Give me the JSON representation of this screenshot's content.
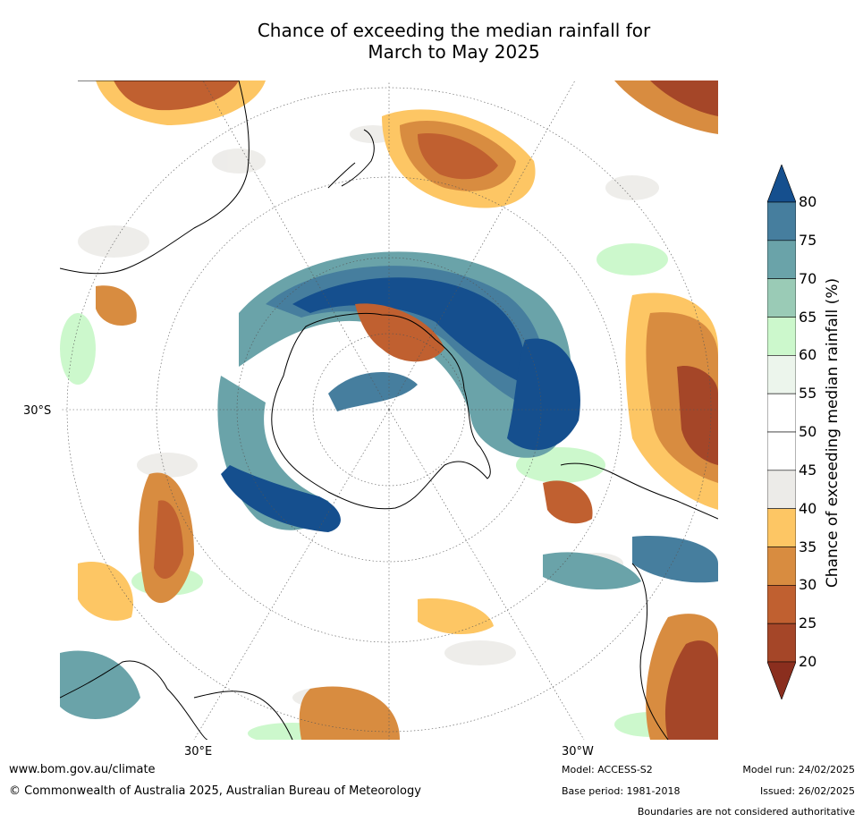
{
  "title_line1": "Chance of exceeding the median rainfall for",
  "title_line2": "March to May 2025",
  "lat_label": "30°S",
  "lon_label_left": "30°E",
  "lon_label_right": "30°W",
  "colorbar": {
    "label": "Chance of exceeding median rainfall (%)",
    "ticks": [
      "80",
      "75",
      "70",
      "65",
      "60",
      "55",
      "50",
      "45",
      "40",
      "35",
      "30",
      "25",
      "20"
    ],
    "colors": {
      "gt80": "#154f8e",
      "75_80": "#467e9e",
      "70_75": "#6aa3a9",
      "65_70": "#9acbb6",
      "60_65": "#ccf8cc",
      "55_60": "#ecf5ec",
      "50_55": "#ffffff",
      "45_50": "#ffffff",
      "40_45": "#ecebe8",
      "35_40": "#fdc664",
      "30_35": "#d88c40",
      "25_30": "#c06030",
      "20_25": "#a54628",
      "lt20": "#8a2e1e"
    }
  },
  "footer": {
    "url": "www.bom.gov.au/climate",
    "copyright": "© Commonwealth of Australia 2025, Australian Bureau of Meteorology",
    "model": "Model: ACCESS-S2",
    "base_period": "Base period: 1981-2018",
    "model_run": "Model run: 24/02/2025",
    "issued": "Issued: 26/02/2025",
    "boundaries": "Boundaries are not considered authoritative"
  }
}
